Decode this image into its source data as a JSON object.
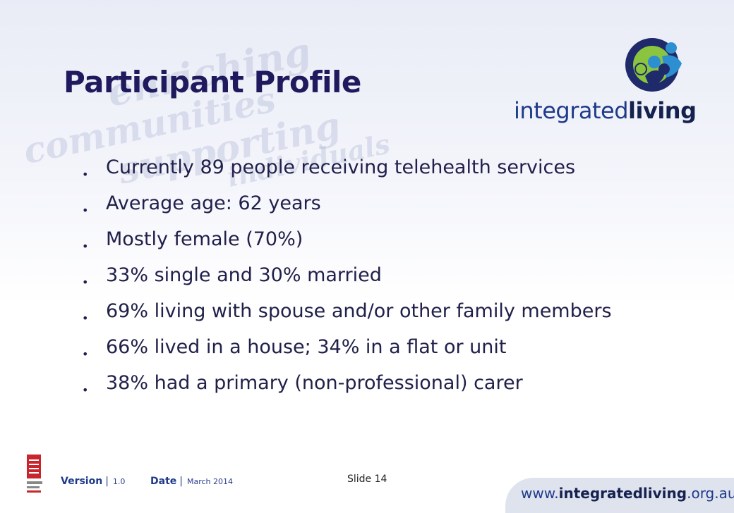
{
  "slide": {
    "title": "Participant Profile",
    "bullets": [
      "Currently 89 people receiving telehealth services",
      "Average age: 62 years",
      "Mostly female (70%)",
      "33% single and 30% married",
      "69% living with spouse and/or other family members",
      "66% lived in a house; 34% in a flat or unit",
      "38% had a primary (non-professional) carer"
    ]
  },
  "logo": {
    "word_light": "integrated",
    "word_bold": "living",
    "colors": {
      "green": "#8bc53f",
      "navy": "#1f2a6b",
      "blue": "#2d8fd0"
    }
  },
  "footer": {
    "version_label": "Version",
    "version_value": "1.0",
    "date_label": "Date",
    "date_value": "March 2014",
    "slide_number": "Slide 14",
    "url_pre": "www.",
    "url_bold": "integratedliving",
    "url_post": ".org.au"
  },
  "watermark": [
    "enriching",
    "communities",
    "supporting",
    "individuals"
  ],
  "colors": {
    "title": "#1f1a5e",
    "text": "#20204a",
    "accent": "#1f3a8a"
  }
}
